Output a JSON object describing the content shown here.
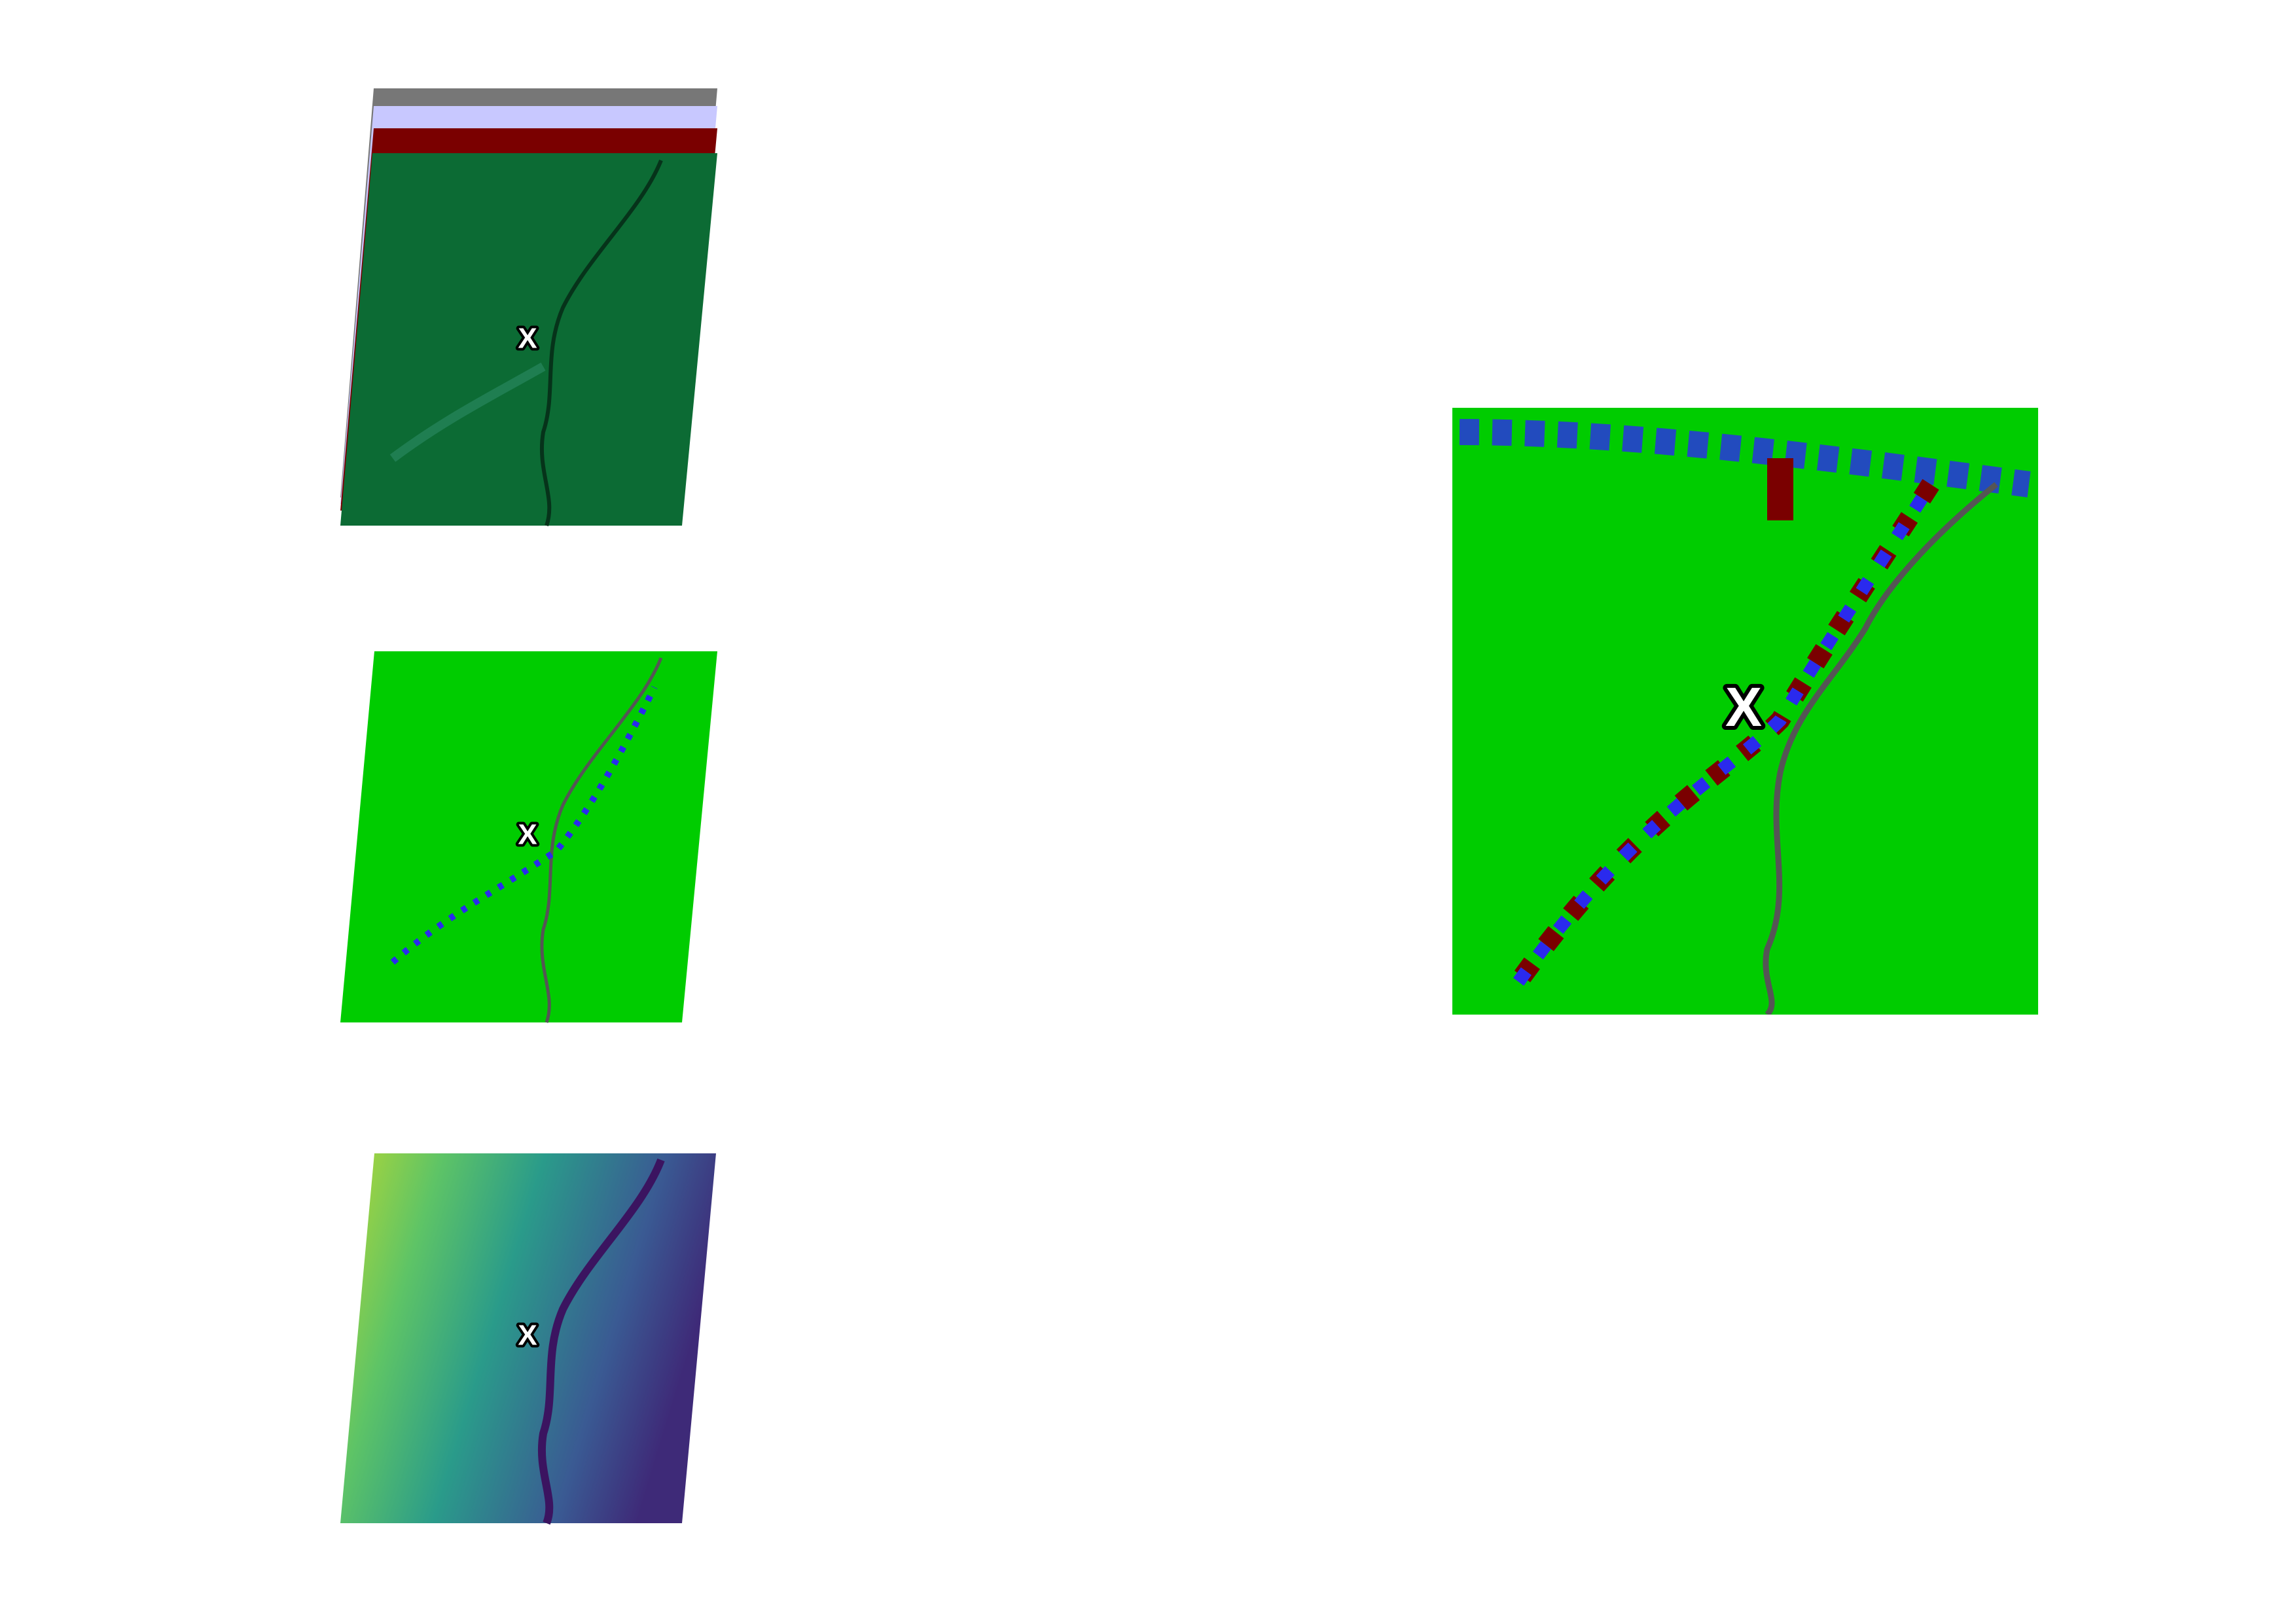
{
  "panels": [
    {
      "marker": "X"
    },
    {
      "marker": "X"
    },
    {
      "marker": "X"
    },
    {
      "marker": "X"
    }
  ]
}
